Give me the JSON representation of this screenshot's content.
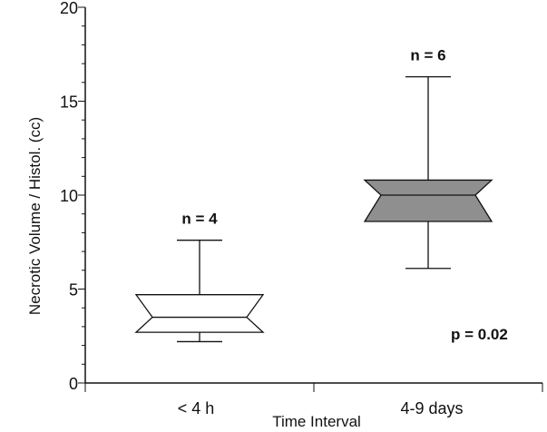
{
  "chart_data": {
    "type": "box",
    "title": "",
    "xlabel": "Time Interval",
    "ylabel": "Necrotic Volume / Histol. (cc)",
    "ylim": [
      0,
      20
    ],
    "yticks": [
      "0",
      "5",
      "10",
      "15",
      "20"
    ],
    "categories": [
      "< 4 h",
      "4-9 days"
    ],
    "boxes": [
      {
        "category": "< 4 h",
        "min": 2.2,
        "q1": 2.7,
        "median": 3.5,
        "q3": 4.7,
        "max": 7.6,
        "fill": "#ffffff",
        "annotation": "n = 4"
      },
      {
        "category": "4-9 days",
        "min": 6.1,
        "q1": 8.6,
        "median": 10.0,
        "q3": 10.8,
        "max": 16.3,
        "fill": "#8f8f8f",
        "annotation": "n = 6"
      }
    ],
    "annotations": [
      "p = 0.02"
    ],
    "grid": false,
    "colors": {
      "axis": "#111111",
      "box_outline": "#111111",
      "box_fill_dark": "#8f8f8f"
    }
  }
}
